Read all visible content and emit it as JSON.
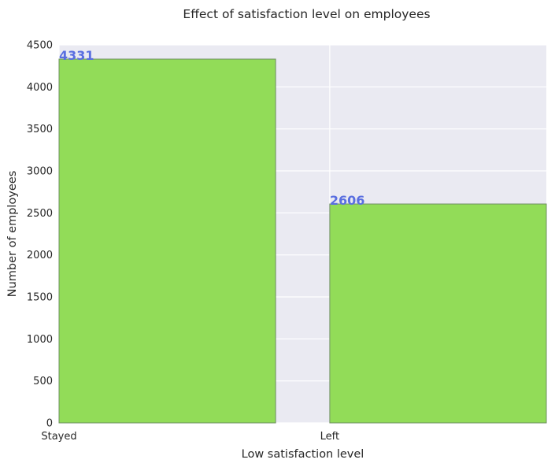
{
  "chart_data": {
    "type": "bar",
    "title": "Effect of satisfaction level on employees",
    "xlabel": "Low satisfaction level",
    "ylabel": "Number of employees",
    "categories": [
      "Stayed",
      "Left"
    ],
    "values": [
      4331,
      2606
    ],
    "data_labels": [
      "4331",
      "2606"
    ],
    "ylim": [
      0,
      4500
    ],
    "yticks": [
      0,
      500,
      1000,
      1500,
      2000,
      2500,
      3000,
      3500,
      4000,
      4500
    ],
    "ytick_labels": [
      "0",
      "500",
      "1000",
      "1500",
      "2000",
      "2500",
      "3000",
      "3500",
      "4000",
      "4500"
    ],
    "grid": true,
    "colors": {
      "bar_fill": "#92dc58",
      "bar_edge": "#6f8f63",
      "label": "#5a6fe0",
      "plot_bg": "#eaeaf2",
      "grid": "#ffffff"
    }
  }
}
